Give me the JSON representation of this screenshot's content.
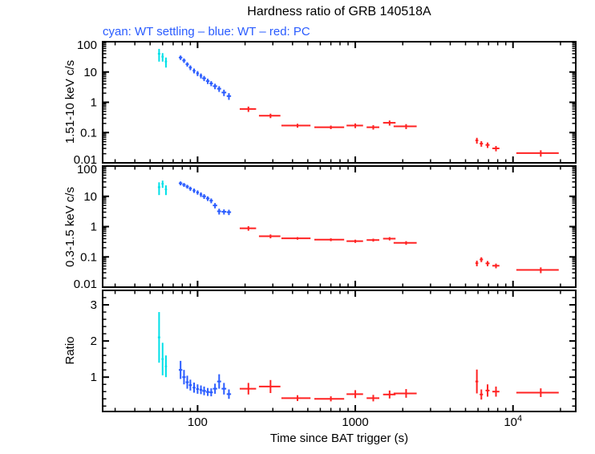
{
  "chart": {
    "title": "Hardness ratio of GRB 140518A",
    "subtitle": "cyan: WT settling – blue: WT – red: PC",
    "xlabel": "Time since BAT trigger (s)",
    "colors": {
      "wt_settling": "#00e0e8",
      "wt": "#2a5cff",
      "pc": "#ff2222",
      "axis": "#000000"
    }
  },
  "chart_data": {
    "type": "scatter",
    "description": "Swift-XRT hardness ratio light curve, three stacked panels sharing a logarithmic time axis; points are error-bar crosses [time_s, time_err_s, value, value_err]",
    "x_axis": {
      "scale": "log",
      "min": 25,
      "max": 25000,
      "major_ticks": [
        100,
        1000,
        10000
      ],
      "tick_labels": [
        "100",
        "1000",
        "10^4"
      ],
      "label": "Time since BAT trigger (s)"
    },
    "legend": [
      {
        "series": "wt_settling",
        "label": "WT settling",
        "color_name": "cyan"
      },
      {
        "series": "wt",
        "label": "WT",
        "color_name": "blue"
      },
      {
        "series": "pc",
        "label": "PC",
        "color_name": "red"
      }
    ],
    "point_format": [
      "time_s",
      "time_err_s",
      "value",
      "value_err"
    ],
    "panels": [
      {
        "id": "hard_rate",
        "ylabel": "1.51-10 keV c/s",
        "yscale": "log",
        "ymin": 0.01,
        "ymax": 100,
        "yticks": [
          {
            "v": 100,
            "label": "100"
          },
          {
            "v": 10,
            "label": "10"
          },
          {
            "v": 1,
            "label": "1"
          },
          {
            "v": 0.1,
            "label": "0.1"
          },
          {
            "v": 0.01,
            "label": "0.01"
          }
        ],
        "series": {
          "wt_settling": [
            [
              57,
              1,
              40,
              18
            ],
            [
              60,
              1,
              32,
              10
            ],
            [
              63,
              1,
              22,
              8
            ]
          ],
          "wt": [
            [
              78,
              2,
              30,
              5
            ],
            [
              82,
              2,
              24,
              4
            ],
            [
              86,
              2,
              18,
              3
            ],
            [
              90,
              2,
              14,
              2.5
            ],
            [
              95,
              2,
              11,
              2
            ],
            [
              100,
              2,
              9,
              1.7
            ],
            [
              105,
              2,
              7.5,
              1.4
            ],
            [
              110,
              3,
              6.2,
              1.2
            ],
            [
              116,
              3,
              5,
              1
            ],
            [
              122,
              3,
              4.2,
              0.8
            ],
            [
              129,
              4,
              3.4,
              0.7
            ],
            [
              137,
              4,
              2.8,
              0.6
            ],
            [
              147,
              5,
              2.1,
              0.5
            ],
            [
              158,
              5,
              1.6,
              0.4
            ]
          ],
          "pc": [
            [
              210,
              25,
              0.6,
              0.12
            ],
            [
              290,
              45,
              0.36,
              0.06
            ],
            [
              430,
              90,
              0.17,
              0.025
            ],
            [
              700,
              150,
              0.15,
              0.02
            ],
            [
              1000,
              120,
              0.17,
              0.03
            ],
            [
              1300,
              120,
              0.15,
              0.025
            ],
            [
              1650,
              150,
              0.21,
              0.04
            ],
            [
              2100,
              350,
              0.16,
              0.03
            ],
            [
              5900,
              120,
              0.055,
              0.012
            ],
            [
              6300,
              150,
              0.043,
              0.009
            ],
            [
              6900,
              200,
              0.039,
              0.008
            ],
            [
              7800,
              400,
              0.03,
              0.006
            ],
            [
              15000,
              4500,
              0.021,
              0.005
            ]
          ]
        }
      },
      {
        "id": "soft_rate",
        "ylabel": "0.3-1.5 keV c/s",
        "yscale": "log",
        "ymin": 0.01,
        "ymax": 100,
        "yticks": [
          {
            "v": 100,
            "label": "100"
          },
          {
            "v": 10,
            "label": "10"
          },
          {
            "v": 1,
            "label": "1"
          },
          {
            "v": 0.1,
            "label": "0.1"
          },
          {
            "v": 0.01,
            "label": "0.01"
          }
        ],
        "series": {
          "wt_settling": [
            [
              57,
              1,
              20,
              9
            ],
            [
              60,
              1,
              26,
              7
            ],
            [
              63,
              1,
              17,
              6
            ]
          ],
          "wt": [
            [
              78,
              2,
              27,
              4
            ],
            [
              82,
              2,
              24,
              3.5
            ],
            [
              86,
              2,
              21,
              3
            ],
            [
              90,
              2,
              18,
              2.8
            ],
            [
              95,
              2,
              15.5,
              2.5
            ],
            [
              100,
              2,
              13.5,
              2.2
            ],
            [
              105,
              2,
              11.5,
              2
            ],
            [
              110,
              3,
              10,
              1.8
            ],
            [
              116,
              3,
              8.5,
              1.5
            ],
            [
              122,
              3,
              7.2,
              1.3
            ],
            [
              129,
              4,
              5,
              1
            ],
            [
              137,
              4,
              3.2,
              0.7
            ],
            [
              147,
              5,
              3.1,
              0.6
            ],
            [
              158,
              5,
              3,
              0.6
            ]
          ],
          "pc": [
            [
              210,
              25,
              0.88,
              0.15
            ],
            [
              290,
              45,
              0.48,
              0.07
            ],
            [
              430,
              90,
              0.41,
              0.04
            ],
            [
              700,
              150,
              0.37,
              0.04
            ],
            [
              1000,
              120,
              0.33,
              0.04
            ],
            [
              1300,
              120,
              0.36,
              0.04
            ],
            [
              1650,
              150,
              0.4,
              0.05
            ],
            [
              2100,
              350,
              0.29,
              0.04
            ],
            [
              5900,
              120,
              0.062,
              0.013
            ],
            [
              6300,
              150,
              0.082,
              0.015
            ],
            [
              6900,
              200,
              0.061,
              0.012
            ],
            [
              7800,
              400,
              0.051,
              0.009
            ],
            [
              15000,
              4500,
              0.037,
              0.008
            ]
          ]
        }
      },
      {
        "id": "ratio",
        "ylabel": "Ratio",
        "yscale": "linear",
        "ymin": 0.05,
        "ymax": 3.4,
        "yticks": [
          {
            "v": 1,
            "label": "1"
          },
          {
            "v": 2,
            "label": "2"
          },
          {
            "v": 3,
            "label": "3"
          }
        ],
        "series": {
          "wt_settling": [
            [
              57,
              1,
              2.1,
              0.7
            ],
            [
              60,
              1,
              1.5,
              0.45
            ],
            [
              63,
              1,
              1.3,
              0.3
            ]
          ],
          "wt": [
            [
              78,
              2,
              1.2,
              0.25
            ],
            [
              82,
              2,
              1,
              0.2
            ],
            [
              86,
              2,
              0.86,
              0.18
            ],
            [
              90,
              2,
              0.78,
              0.15
            ],
            [
              95,
              2,
              0.71,
              0.14
            ],
            [
              100,
              2,
              0.67,
              0.13
            ],
            [
              105,
              2,
              0.65,
              0.12
            ],
            [
              110,
              3,
              0.62,
              0.12
            ],
            [
              116,
              3,
              0.59,
              0.11
            ],
            [
              122,
              3,
              0.58,
              0.11
            ],
            [
              129,
              4,
              0.68,
              0.14
            ],
            [
              137,
              4,
              0.88,
              0.2
            ],
            [
              147,
              5,
              0.68,
              0.16
            ],
            [
              158,
              5,
              0.53,
              0.13
            ]
          ],
          "pc": [
            [
              210,
              25,
              0.68,
              0.16
            ],
            [
              290,
              45,
              0.74,
              0.18
            ],
            [
              430,
              90,
              0.42,
              0.08
            ],
            [
              700,
              150,
              0.4,
              0.07
            ],
            [
              1000,
              120,
              0.53,
              0.11
            ],
            [
              1300,
              120,
              0.42,
              0.09
            ],
            [
              1650,
              150,
              0.52,
              0.11
            ],
            [
              2100,
              350,
              0.55,
              0.12
            ],
            [
              5900,
              120,
              0.88,
              0.33
            ],
            [
              6300,
              150,
              0.52,
              0.14
            ],
            [
              6900,
              200,
              0.63,
              0.17
            ],
            [
              7800,
              400,
              0.6,
              0.14
            ],
            [
              15000,
              4500,
              0.57,
              0.12
            ]
          ]
        }
      }
    ]
  }
}
